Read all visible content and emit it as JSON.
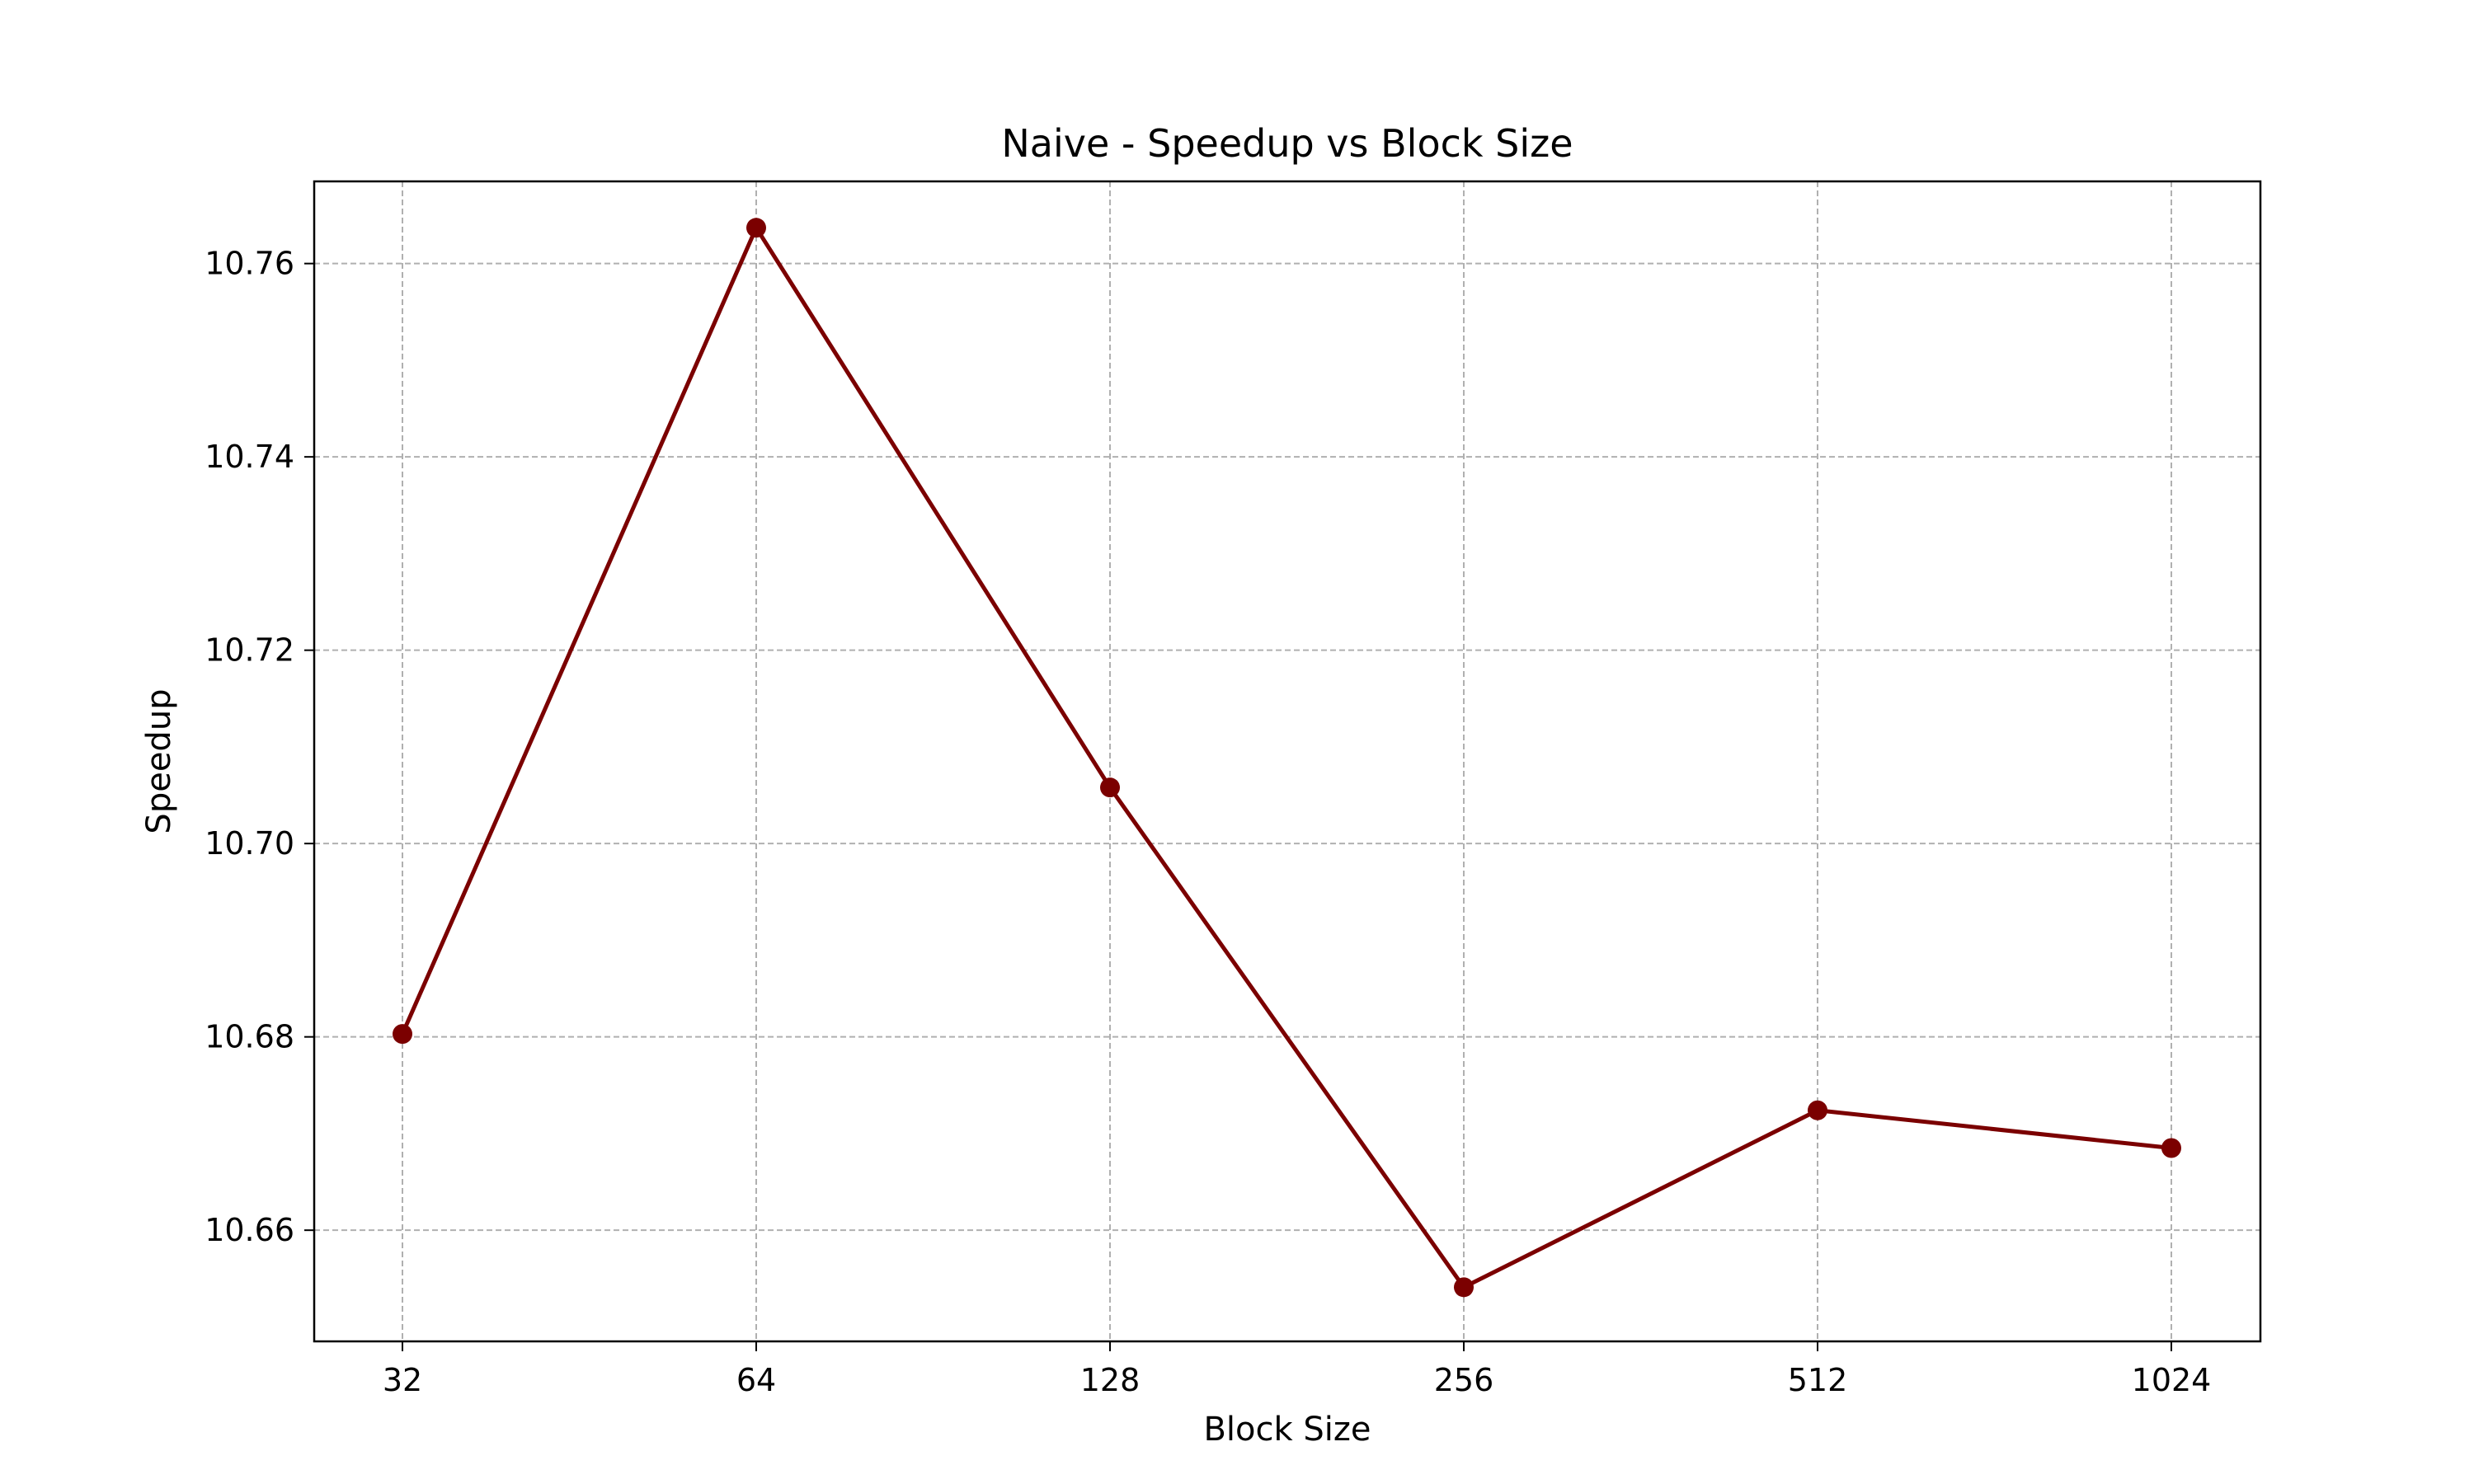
{
  "chart_data": {
    "type": "line",
    "title": "Naive - Speedup vs Block Size",
    "xlabel": "Block Size",
    "ylabel": "Speedup",
    "x_scale": "log2",
    "categories": [
      "32",
      "64",
      "128",
      "256",
      "512",
      "1024"
    ],
    "x": [
      32,
      64,
      128,
      256,
      512,
      1024
    ],
    "y_ticks": [
      "10.66",
      "10.68",
      "10.70",
      "10.72",
      "10.74",
      "10.76"
    ],
    "y_tick_values": [
      10.66,
      10.68,
      10.7,
      10.72,
      10.74,
      10.76
    ],
    "ylim": [
      10.6485,
      10.7685
    ],
    "grid": true,
    "series": [
      {
        "values": [
          10.6803,
          10.7637,
          10.7058,
          10.6541,
          10.6724,
          10.6685
        ],
        "color": "#7b0000",
        "marker": "circle"
      }
    ]
  }
}
